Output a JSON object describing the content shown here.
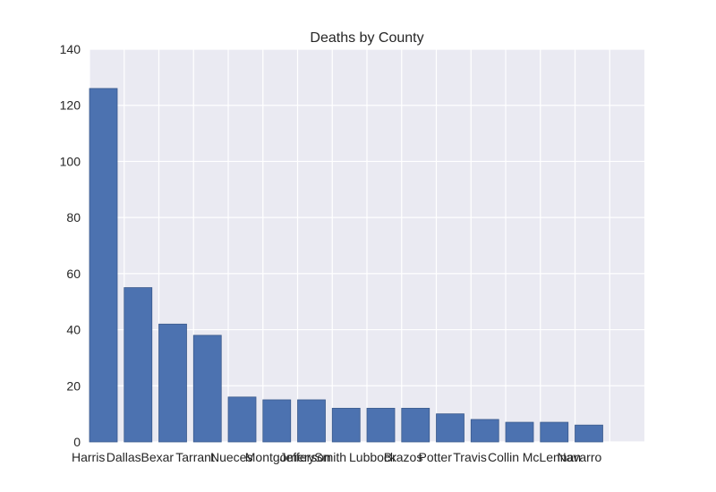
{
  "colors": {
    "plot_background": "#EAEAF2",
    "grid": "#FFFFFF",
    "bar_fill": "#4C72B0",
    "bar_edge": "#3B5A8C",
    "text": "#262626"
  },
  "chart_data": {
    "type": "bar",
    "title": "Deaths by County",
    "xlabel": "",
    "ylabel": "",
    "ylim": [
      0,
      140
    ],
    "yticks": [
      0,
      20,
      40,
      60,
      80,
      100,
      120,
      140
    ],
    "xlim": [
      0,
      16
    ],
    "grid": true,
    "legend": "none",
    "categories": [
      "Harris",
      "Dallas",
      "Bexar",
      "Tarrant",
      "Nueces",
      "Montgomery",
      "Jefferson",
      "Smith",
      "Lubbock",
      "Brazos",
      "Potter",
      "Travis",
      "Collin",
      "McLennan",
      "Navarro"
    ],
    "values": [
      126,
      55,
      42,
      38,
      16,
      15,
      15,
      12,
      12,
      12,
      10,
      8,
      7,
      7,
      6
    ]
  }
}
